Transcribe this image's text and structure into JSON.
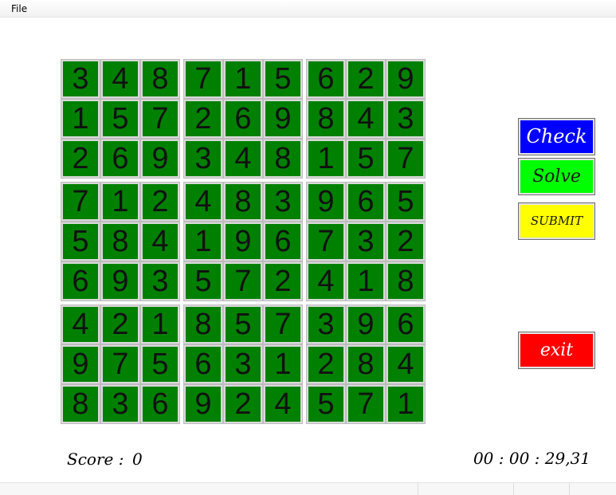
{
  "menubar": {
    "items": [
      {
        "label": "File"
      }
    ]
  },
  "board": {
    "colors": {
      "cell_bg": "#008000",
      "digit": "#111111"
    },
    "grid": [
      [
        3,
        4,
        8,
        7,
        1,
        5,
        6,
        2,
        9
      ],
      [
        1,
        5,
        7,
        2,
        6,
        9,
        8,
        4,
        3
      ],
      [
        2,
        6,
        9,
        3,
        4,
        8,
        1,
        5,
        7
      ],
      [
        7,
        1,
        2,
        4,
        8,
        3,
        9,
        6,
        5
      ],
      [
        5,
        8,
        4,
        1,
        9,
        6,
        7,
        3,
        2
      ],
      [
        6,
        9,
        3,
        5,
        7,
        2,
        4,
        1,
        8
      ],
      [
        4,
        2,
        1,
        8,
        5,
        7,
        3,
        9,
        6
      ],
      [
        9,
        7,
        5,
        6,
        3,
        1,
        2,
        8,
        4
      ],
      [
        8,
        3,
        6,
        9,
        2,
        4,
        5,
        7,
        1
      ]
    ]
  },
  "controls": {
    "check_label": "Check",
    "solve_label": "Solve",
    "submit_label": "SUBMIT",
    "exit_label": "exit",
    "colors": {
      "check": "#0000ff",
      "solve": "#00ff00",
      "submit": "#ffff00",
      "exit": "#ff0000"
    }
  },
  "score": {
    "label": "Score :",
    "value": "0"
  },
  "timer": {
    "display": "00 : 00 : 29,31"
  }
}
